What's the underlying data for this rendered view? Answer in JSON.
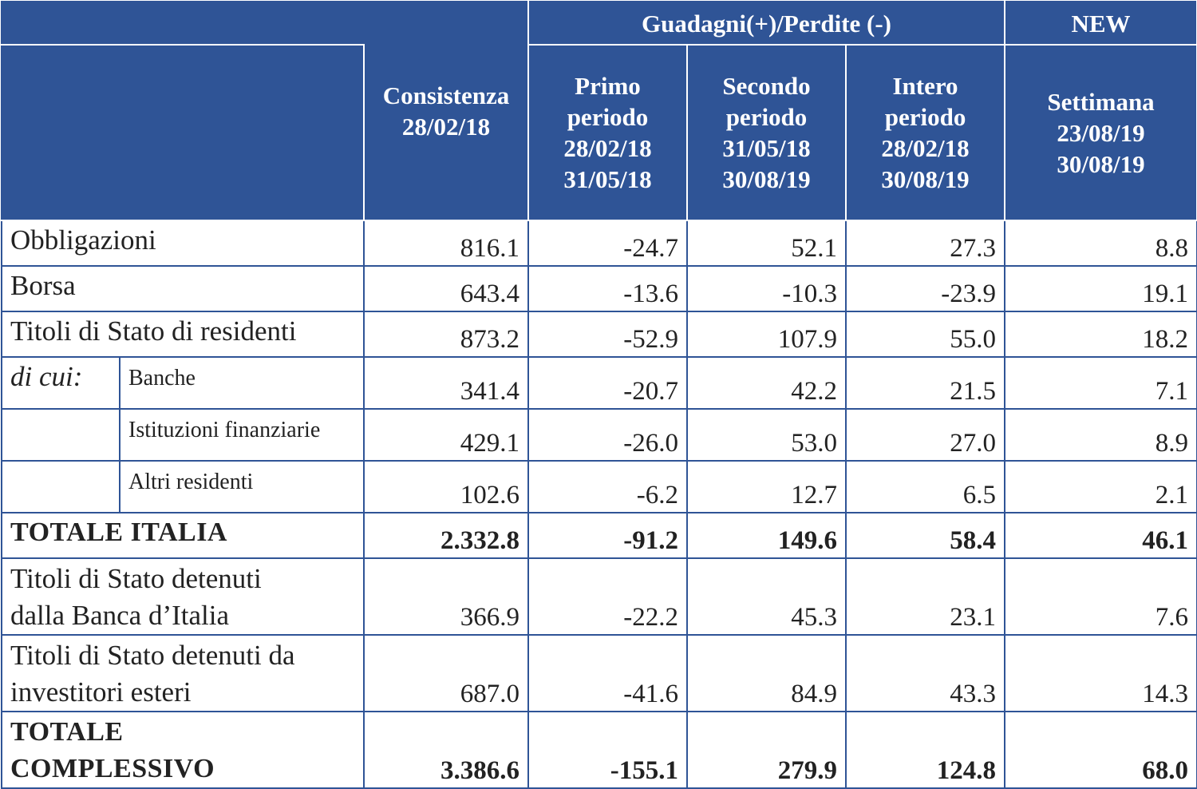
{
  "header": {
    "group_gains": "Guadagni(+)/Perdite (-)",
    "group_new": "NEW",
    "col_consistenza": [
      "Consistenza",
      "28/02/18"
    ],
    "col_primo": [
      "Primo",
      "periodo",
      "28/02/18",
      "31/05/18"
    ],
    "col_secondo": [
      "Secondo",
      "periodo",
      "31/05/18",
      "30/08/19"
    ],
    "col_intero": [
      "Intero",
      "periodo",
      "28/02/18",
      "30/08/19"
    ],
    "col_settimana": [
      "Settimana",
      "23/08/19",
      "30/08/19"
    ]
  },
  "rows": [
    {
      "label": "Obbligazioni",
      "values": [
        "816.1",
        "-24.7",
        "52.1",
        "27.3",
        "8.8"
      ]
    },
    {
      "label": "Borsa",
      "values": [
        "643.4",
        "-13.6",
        "-10.3",
        "-23.9",
        "19.1"
      ]
    },
    {
      "label": "Titoli di Stato di residenti",
      "values": [
        "873.2",
        "-52.9",
        "107.9",
        "55.0",
        "18.2"
      ]
    },
    {
      "prefix": "di cui:",
      "label": "Banche",
      "values": [
        "341.4",
        "-20.7",
        "42.2",
        "21.5",
        "7.1"
      ]
    },
    {
      "label": "Istituzioni finanziarie",
      "values": [
        "429.1",
        "-26.0",
        "53.0",
        "27.0",
        "8.9"
      ]
    },
    {
      "label": "Altri residenti",
      "values": [
        "102.6",
        "-6.2",
        "12.7",
        "6.5",
        "2.1"
      ]
    },
    {
      "label": "TOTALE ITALIA",
      "values": [
        "2.332.8",
        "-91.2",
        "149.6",
        "58.4",
        "46.1"
      ]
    },
    {
      "label": [
        "Titoli di Stato detenuti",
        "dalla Banca d’Italia"
      ],
      "values": [
        "366.9",
        "-22.2",
        "45.3",
        "23.1",
        "7.6"
      ]
    },
    {
      "label": [
        "Titoli di Stato detenuti da",
        "investitori esteri"
      ],
      "values": [
        "687.0",
        "-41.6",
        "84.9",
        "43.3",
        "14.3"
      ]
    },
    {
      "label": [
        "TOTALE",
        "COMPLESSIVO"
      ],
      "values": [
        "3.386.6",
        "-155.1",
        "279.9",
        "124.8",
        "68.0"
      ]
    }
  ]
}
